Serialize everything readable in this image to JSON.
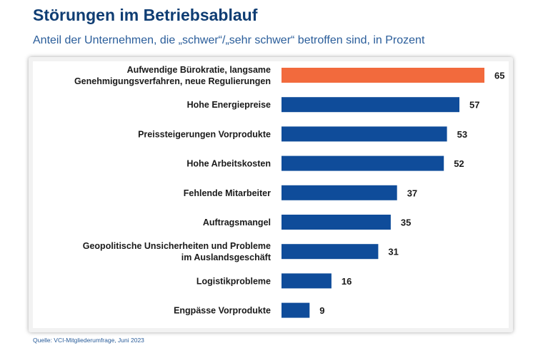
{
  "header": {
    "title": "Störungen im Betriebsablauf",
    "subtitle": "Anteil der Unternehmen, die „schwer“/„sehr schwer“ betroffen sind, in Prozent"
  },
  "footer": {
    "source": "Quelle: VCI-Mitgliederumfrage, Juni 2023"
  },
  "colors": {
    "highlight": "#f26a3d",
    "bar": "#0f4c9a",
    "title": "#0f3d73",
    "subtitle": "#2a5d9a",
    "label": "#1a1a1a"
  },
  "chart_data": {
    "type": "bar",
    "orientation": "horizontal",
    "title": "Störungen im Betriebsablauf",
    "subtitle": "Anteil der Unternehmen, die „schwer“/„sehr schwer“ betroffen sind, in Prozent",
    "xlabel": "",
    "ylabel": "",
    "xlim": [
      0,
      65
    ],
    "grid": false,
    "legend": "none",
    "categories": [
      [
        "Aufwendige Bürokratie, langsame",
        "Genehmigungsverfahren, neue Regulierungen"
      ],
      [
        "Hohe Energiepreise"
      ],
      [
        "Preissteigerungen Vorprodukte"
      ],
      [
        "Hohe Arbeitskosten"
      ],
      [
        "Fehlende Mitarbeiter"
      ],
      [
        "Auftragsmangel"
      ],
      [
        "Geopolitische Unsicherheiten und Probleme",
        "im Auslandsgeschäft"
      ],
      [
        "Logistikprobleme"
      ],
      [
        "Engpässe Vorprodukte"
      ]
    ],
    "values": [
      65,
      57,
      53,
      52,
      37,
      35,
      31,
      16,
      9
    ],
    "value_labels": [
      "65",
      "57",
      "53",
      "52",
      "37",
      "35",
      "31",
      "16",
      "9"
    ],
    "highlight_index": 0
  }
}
